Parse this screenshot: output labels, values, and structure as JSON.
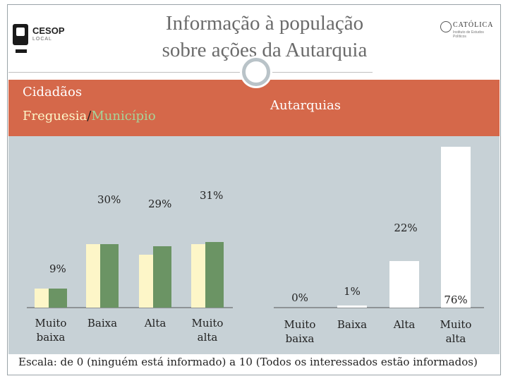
{
  "header": {
    "title_line1": "Informação à população",
    "title_line2": "sobre ações da Autarquia",
    "logo_left": {
      "name": "CESOP",
      "sub": "LOCAL"
    },
    "logo_right": {
      "name": "CATÓLICA",
      "sub": "Instituto de Estudos Políticos"
    }
  },
  "band": {
    "cidadaos_label": "Cidadãos",
    "freguesia_label": "Freguesia",
    "separator": "/",
    "municipio_label": "Município",
    "autarquias_label": "Autarquias"
  },
  "colors": {
    "band": "#d5684a",
    "plot_bg": "#c7d1d6",
    "freguesia": "#fdf6c8",
    "municipio": "#6b9464",
    "autarquias": "#ffffff"
  },
  "chart_data": [
    {
      "type": "bar",
      "title": "Cidadãos",
      "categories": [
        "Muito baixa",
        "Baixa",
        "Alta",
        "Muito alta"
      ],
      "series": [
        {
          "name": "Freguesia",
          "values": [
            9,
            30,
            25,
            30
          ]
        },
        {
          "name": "Município",
          "values": [
            9,
            30,
            29,
            31
          ]
        }
      ],
      "data_labels": [
        {
          "category": "Muito baixa",
          "text": "9%"
        },
        {
          "category": "Baixa",
          "text": "30%"
        },
        {
          "category": "Alta",
          "text": "29%"
        },
        {
          "category": "Muito alta",
          "text": "31%"
        }
      ],
      "ylim": [
        0,
        80
      ]
    },
    {
      "type": "bar",
      "title": "Autarquias",
      "categories": [
        "Muito baixa",
        "Baixa",
        "Alta",
        "Muito alta"
      ],
      "series": [
        {
          "name": "Autarquias",
          "values": [
            0,
            1,
            22,
            76
          ]
        }
      ],
      "data_labels": [
        {
          "category": "Muito baixa",
          "text": "0%"
        },
        {
          "category": "Baixa",
          "text": "1%"
        },
        {
          "category": "Alta",
          "text": "22%"
        },
        {
          "category": "Muito alta",
          "text": "76%"
        }
      ],
      "ylim": [
        0,
        80
      ]
    }
  ],
  "footer": {
    "scale_note": "Escala: de 0 (ninguém está informado) a 10 (Todos os interessados estão informados)"
  }
}
